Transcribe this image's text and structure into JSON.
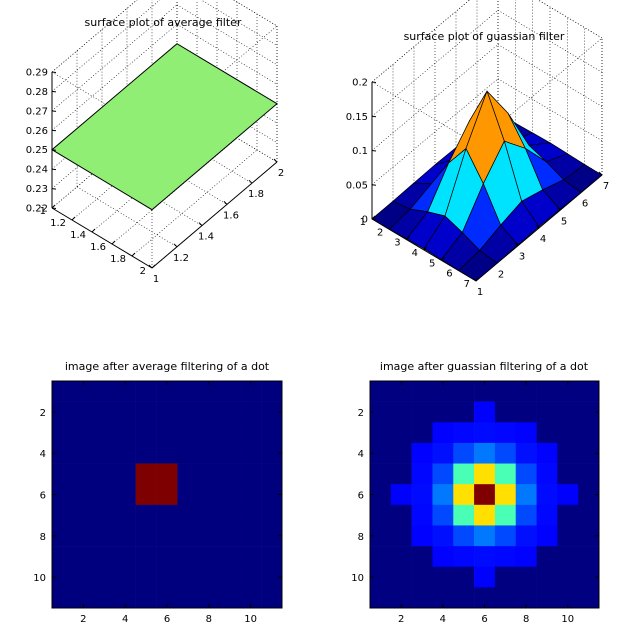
{
  "figure": {
    "background": "#ffffff"
  },
  "chart_data": [
    {
      "type": "surface",
      "title": "surface plot of average filter",
      "x": [
        1,
        2
      ],
      "y": [
        1,
        2
      ],
      "z": [
        [
          0.25,
          0.25
        ],
        [
          0.25,
          0.25
        ]
      ],
      "surface_color": "#90ee74",
      "xlim": [
        1,
        2
      ],
      "ylim": [
        1,
        2
      ],
      "zlim": [
        0.22,
        0.29
      ],
      "xticks": [
        "1",
        "1.2",
        "1.4",
        "1.6",
        "1.8",
        "2"
      ],
      "yticks": [
        "1",
        "1.2",
        "1.4",
        "1.6",
        "1.8",
        "2"
      ],
      "zticks": [
        "0.22",
        "0.23",
        "0.24",
        "0.25",
        "0.26",
        "0.27",
        "0.28",
        "0.29"
      ],
      "grid": true
    },
    {
      "type": "surface",
      "title": "surface plot of guassian filter",
      "x": [
        1,
        2,
        3,
        4,
        5,
        6,
        7
      ],
      "y": [
        1,
        2,
        3,
        4,
        5,
        6,
        7
      ],
      "z": [
        [
          0.0001,
          0.0016,
          0.0066,
          0.0106,
          0.0066,
          0.0016,
          0.0001
        ],
        [
          0.0016,
          0.0221,
          0.0896,
          0.1434,
          0.0896,
          0.0221,
          0.0016
        ],
        [
          0.0066,
          0.0896,
          0.3631,
          0.5811,
          0.3631,
          0.0896,
          0.0066
        ],
        [
          0.0106,
          0.1434,
          0.5811,
          0.9303,
          0.5811,
          0.1434,
          0.0106
        ],
        [
          0.0066,
          0.0896,
          0.3631,
          0.5811,
          0.3631,
          0.0896,
          0.0066
        ],
        [
          0.0016,
          0.0221,
          0.0896,
          0.1434,
          0.0896,
          0.0221,
          0.0016
        ],
        [
          0.0001,
          0.0016,
          0.0066,
          0.0106,
          0.0066,
          0.0016,
          0.0001
        ]
      ],
      "z_scale": 0.1661,
      "colormap": "jet",
      "xlim": [
        1,
        7
      ],
      "ylim": [
        1,
        7
      ],
      "zlim": [
        0,
        0.2
      ],
      "xticks": [
        "1",
        "2",
        "3",
        "4",
        "5",
        "6",
        "7"
      ],
      "yticks": [
        "1",
        "2",
        "3",
        "4",
        "5",
        "6",
        "7"
      ],
      "zticks": [
        "0",
        "0.05",
        "0.1",
        "0.15",
        "0.2"
      ],
      "grid": true
    },
    {
      "type": "heatmap",
      "title": "image after average filtering of a dot",
      "rows": 11,
      "cols": 11,
      "hot_cells": [
        [
          5,
          5
        ],
        [
          5,
          6
        ],
        [
          6,
          5
        ],
        [
          6,
          6
        ]
      ],
      "background_color": "#00007f",
      "hot_color": "#7f0000",
      "xticks": [
        "2",
        "4",
        "6",
        "8",
        "10"
      ],
      "yticks": [
        "2",
        "4",
        "6",
        "8",
        "10"
      ],
      "colormap": "jet"
    },
    {
      "type": "heatmap",
      "title": "image after guassian filtering of a dot",
      "rows": 11,
      "cols": 11,
      "center": [
        6,
        6
      ],
      "sigma": 1,
      "colormap": "jet",
      "xticks": [
        "2",
        "4",
        "6",
        "8",
        "10"
      ],
      "yticks": [
        "2",
        "4",
        "6",
        "8",
        "10"
      ]
    }
  ]
}
